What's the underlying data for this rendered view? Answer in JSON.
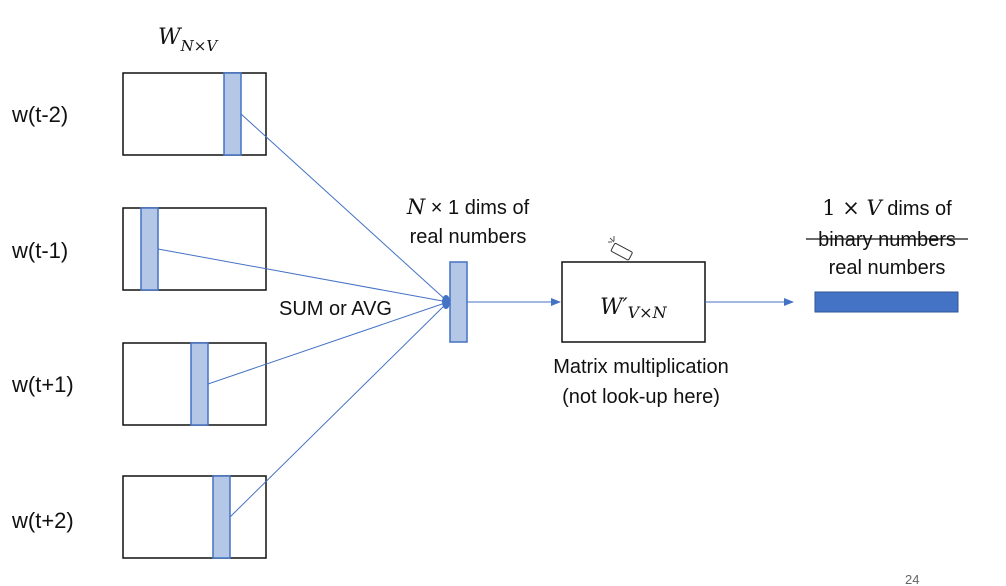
{
  "colors": {
    "matrix_column_fill": "#b4c7e7",
    "matrix_column_stroke": "#4472c4",
    "output_vector_fill": "#4472c4",
    "connector": "#4472c4",
    "box_stroke": "#111111"
  },
  "input_matrix_label": {
    "base": "W",
    "subscript": "N×V"
  },
  "context_words": [
    {
      "label": "w(t-2)"
    },
    {
      "label": "w(t-1)"
    },
    {
      "label": "w(t+1)"
    },
    {
      "label": "w(t+2)"
    }
  ],
  "aggregation_label": "SUM or AVG",
  "hidden_vector": {
    "dims_var": "N",
    "dims_rest": " × 1 dims of",
    "line2": "real numbers"
  },
  "output_matrix_label": {
    "base": "W′",
    "subscript": "V×N"
  },
  "operation_note": {
    "line1": "Matrix multiplication",
    "line2": "(not look-up here)"
  },
  "output_vector": {
    "dims_prefix": "1 × ",
    "dims_var": "V",
    "dims_rest": " dims of",
    "struck_text": "binary numbers",
    "line3": "real numbers"
  },
  "slide_number": "24",
  "cursor_icon": "pointer-cursor-icon"
}
